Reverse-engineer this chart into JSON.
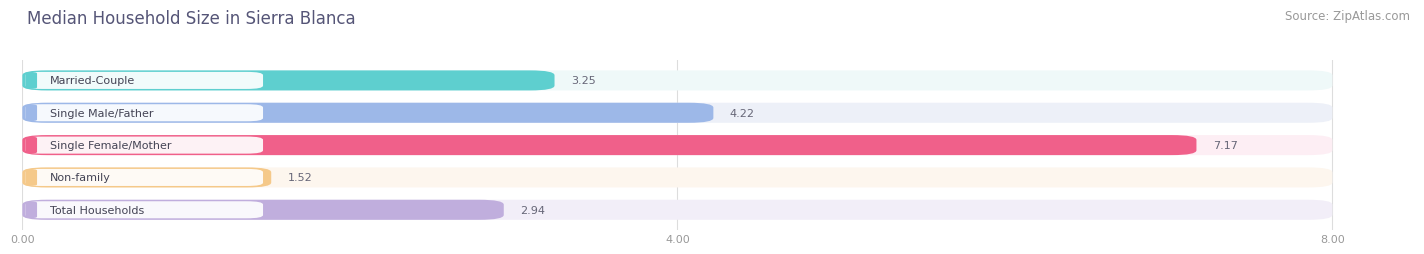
{
  "title": "Median Household Size in Sierra Blanca",
  "source": "Source: ZipAtlas.com",
  "categories": [
    "Married-Couple",
    "Single Male/Father",
    "Single Female/Mother",
    "Non-family",
    "Total Households"
  ],
  "values": [
    3.25,
    4.22,
    7.17,
    1.52,
    2.94
  ],
  "bar_colors": [
    "#5ecfcf",
    "#9db8e8",
    "#f0608a",
    "#f5c98a",
    "#c0aedd"
  ],
  "bar_bg_colors": [
    "#eff9f9",
    "#edf0f8",
    "#fdeef4",
    "#fdf6ee",
    "#f2eef8"
  ],
  "label_accent_colors": [
    "#5ecfcf",
    "#9db8e8",
    "#f0608a",
    "#f5c98a",
    "#c0aedd"
  ],
  "xlim": [
    0,
    8.5
  ],
  "xlim_display": [
    0,
    8.0
  ],
  "xticks": [
    0.0,
    4.0,
    8.0
  ],
  "xticklabels": [
    "0.00",
    "4.00",
    "8.00"
  ],
  "background_color": "#ffffff",
  "title_color": "#555577",
  "title_fontsize": 12,
  "source_fontsize": 8.5,
  "label_fontsize": 8,
  "value_fontsize": 8
}
